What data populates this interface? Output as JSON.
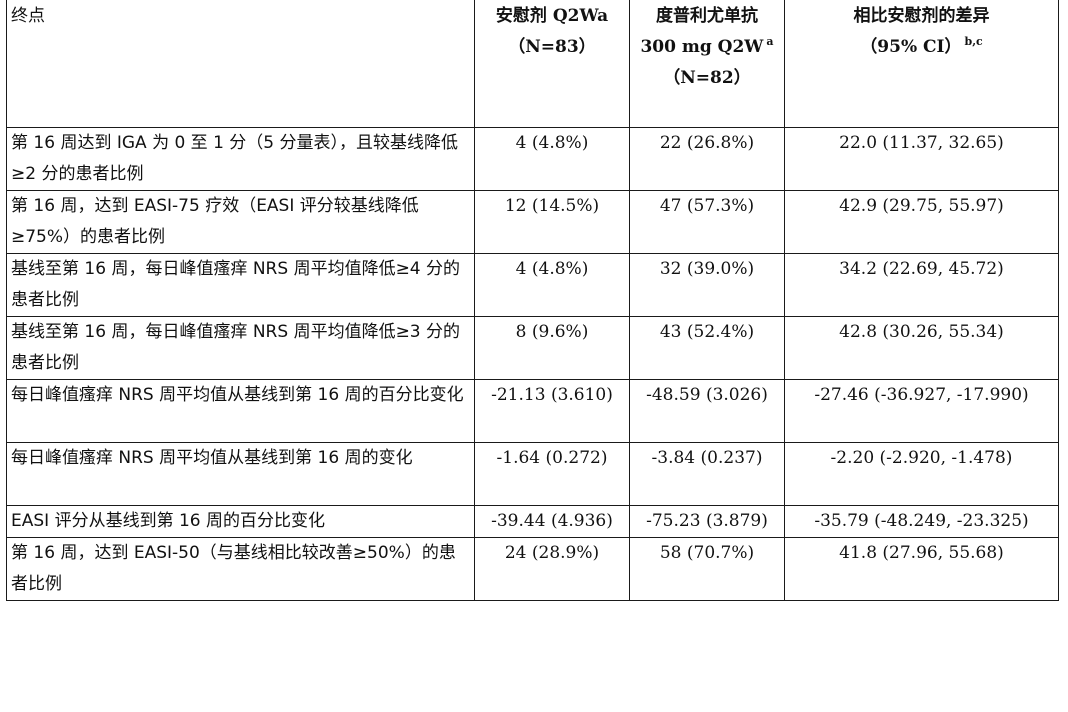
{
  "table": {
    "header": {
      "endpoint": "终点",
      "placebo": {
        "line1": "安慰剂 Q2Wa",
        "line2": "（N=83）"
      },
      "dupilumab": {
        "line1": "度普利尤单抗",
        "line2": "300 mg Q2W",
        "line2_sup": "a",
        "line3": "（N=82）"
      },
      "difference": {
        "line1": "相比安慰剂的差异",
        "line2": "（95% CI）",
        "line2_sup": "b,c"
      }
    },
    "rows": [
      {
        "endpoint": "第 16 周达到 IGA 为 0 至 1 分（5 分量表），且较基线降低≥2 分的患者比例",
        "placebo": "4 (4.8%)",
        "dupilumab": "22 (26.8%)",
        "difference": "22.0 (11.37, 32.65)"
      },
      {
        "endpoint": "第 16 周，达到 EASI-75 疗效（EASI 评分较基线降低≥75%）的患者比例",
        "placebo": "12 (14.5%)",
        "dupilumab": "47 (57.3%)",
        "difference": "42.9 (29.75, 55.97)"
      },
      {
        "endpoint": "基线至第 16 周，每日峰值瘙痒 NRS 周平均值降低≥4 分的患者比例",
        "placebo": "4 (4.8%)",
        "dupilumab": "32 (39.0%)",
        "difference": "34.2 (22.69, 45.72)"
      },
      {
        "endpoint": "基线至第 16 周，每日峰值瘙痒 NRS 周平均值降低≥3 分的患者比例",
        "placebo": "8 (9.6%)",
        "dupilumab": "43 (52.4%)",
        "difference": "42.8 (30.26, 55.34)"
      },
      {
        "endpoint": "每日峰值瘙痒 NRS 周平均值从基线到第 16 周的百分比变化",
        "placebo": "-21.13 (3.610)",
        "dupilumab": "-48.59 (3.026)",
        "difference": "-27.46 (-36.927, -17.990)"
      },
      {
        "endpoint": "每日峰值瘙痒 NRS 周平均值从基线到第 16 周的变化",
        "placebo": "-1.64 (0.272)",
        "dupilumab": "-3.84 (0.237)",
        "difference": "-2.20 (-2.920, -1.478)"
      },
      {
        "endpoint": "EASI 评分从基线到第 16 周的百分比变化",
        "placebo": "-39.44 (4.936)",
        "dupilumab": "-75.23 (3.879)",
        "difference": "-35.79 (-48.249, -23.325)"
      },
      {
        "endpoint": "第 16 周，达到 EASI-50（与基线相比较改善≥50%）的患者比例",
        "placebo": "24 (28.9%)",
        "dupilumab": "58 (70.7%)",
        "difference": "41.8 (27.96, 55.68)"
      }
    ]
  }
}
